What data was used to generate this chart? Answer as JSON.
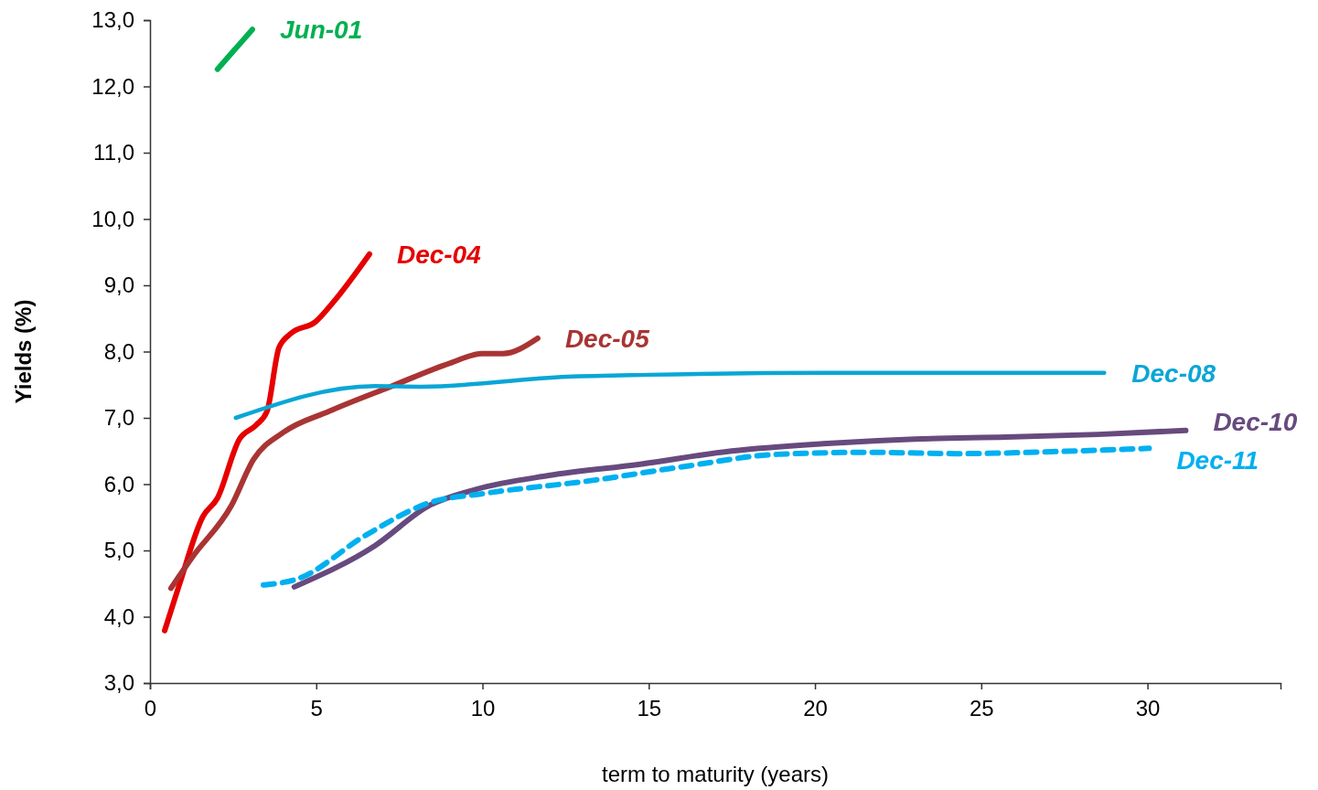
{
  "chart_data": {
    "type": "line",
    "xlabel": "term to maturity (years)",
    "ylabel": "Yields (%)",
    "xlim": [
      0,
      34
    ],
    "xticks": [
      0,
      5,
      10,
      15,
      20,
      25,
      30
    ],
    "ylim": [
      3,
      13
    ],
    "yticks": [
      {
        "value": 3,
        "label": "3,0"
      },
      {
        "value": 4,
        "label": "4,0"
      },
      {
        "value": 5,
        "label": "5,0"
      },
      {
        "value": 6,
        "label": "6,0"
      },
      {
        "value": 7,
        "label": "7,0"
      },
      {
        "value": 8,
        "label": "8,0"
      },
      {
        "value": 9,
        "label": "9,0"
      },
      {
        "value": 10,
        "label": "10,0"
      },
      {
        "value": 11,
        "label": "11,0"
      },
      {
        "value": 12,
        "label": "12,0"
      },
      {
        "value": 13,
        "label": "13,0"
      }
    ],
    "grid": false,
    "marker": "none",
    "series": [
      {
        "name": "Jun-01",
        "color": "#00b050",
        "line_style": "solid",
        "x": [
          2.03,
          3.08
        ],
        "values": [
          12.26,
          12.86
        ]
      },
      {
        "name": "Dec-04",
        "color": "#e60000",
        "line_style": "solid",
        "x": [
          0.44,
          0.88,
          1.59,
          2.03,
          2.69,
          3.19,
          3.52,
          3.88,
          4.23,
          4.98,
          5.52,
          6.6
        ],
        "values": [
          3.79,
          4.48,
          5.51,
          5.79,
          6.68,
          6.89,
          7.1,
          8.06,
          8.27,
          8.45,
          8.75,
          9.47
        ]
      },
      {
        "name": "Dec-05",
        "color": "#a93434",
        "line_style": "solid",
        "x": [
          0.63,
          1.26,
          2.45,
          3.11,
          4.01,
          5.39,
          7.23,
          9.05,
          9.98,
          10.61,
          11.66
        ],
        "values": [
          4.43,
          4.89,
          5.68,
          6.37,
          6.78,
          7.1,
          7.47,
          7.83,
          7.97,
          7.97,
          8.2
        ]
      },
      {
        "name": "Dec-08",
        "color": "#0aa6d6",
        "line_style": "solid",
        "x": [
          2.58,
          6.76,
          8.14,
          12.54,
          15,
          20.2,
          28.7
        ],
        "values": [
          7.0,
          7.48,
          7.47,
          7.62,
          7.65,
          7.68,
          7.68
        ]
      },
      {
        "name": "Dec-10",
        "color": "#674a7e",
        "line_style": "solid",
        "x": [
          4.34,
          6.76,
          8.41,
          9.79,
          11.99,
          14.74,
          17.49,
          20.24,
          22.99,
          25.74,
          28.5,
          31.15
        ],
        "values": [
          4.45,
          5.07,
          5.68,
          5.92,
          6.13,
          6.3,
          6.5,
          6.61,
          6.68,
          6.71,
          6.75,
          6.81
        ]
      },
      {
        "name": "Dec-11",
        "color": "#00b0f0",
        "line_style": "dashed",
        "x": [
          3.41,
          4.43,
          6.49,
          8.41,
          10.06,
          13.36,
          16.11,
          18.86,
          21.61,
          24.36,
          27.11,
          30.05
        ],
        "values": [
          4.48,
          4.57,
          5.23,
          5.72,
          5.86,
          6.06,
          6.27,
          6.45,
          6.48,
          6.46,
          6.49,
          6.54
        ]
      }
    ]
  }
}
